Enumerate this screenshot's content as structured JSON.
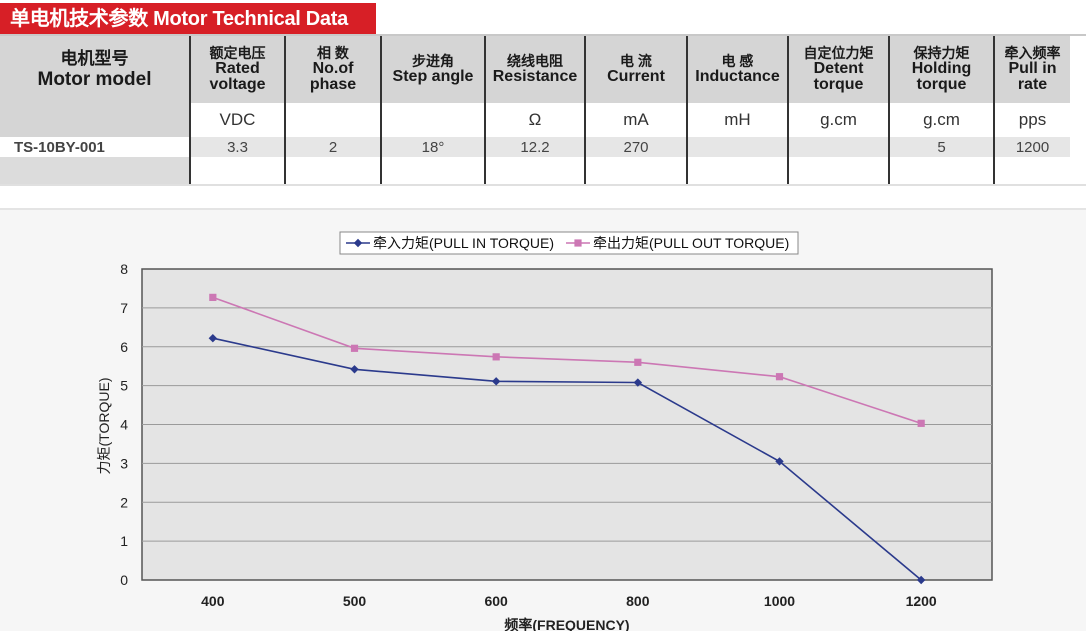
{
  "title": "单电机技术参数 Motor Technical Data",
  "table": {
    "model_header": {
      "cn": "电机型号",
      "en": "Motor model"
    },
    "columns": [
      {
        "cn": "额定电压",
        "en1": "Rated",
        "en2": "voltage",
        "unit": "VDC"
      },
      {
        "cn": "相 数",
        "en1": "No.of",
        "en2": "phase",
        "unit": ""
      },
      {
        "cn": "步进角",
        "en1": "Step angle",
        "en2": "",
        "unit": ""
      },
      {
        "cn": "绕线电阻",
        "en1": "Resistance",
        "en2": "",
        "unit": "Ω"
      },
      {
        "cn": "电 流",
        "en1": "Current",
        "en2": "",
        "unit": "mA"
      },
      {
        "cn": "电 感",
        "en1": "Inductance",
        "en2": "",
        "unit": "mH"
      },
      {
        "cn": "自定位力矩",
        "en1": "Detent",
        "en2": "torque",
        "unit": "g.cm"
      },
      {
        "cn": "保持力矩",
        "en1": "Holding",
        "en2": "torque",
        "unit": "g.cm"
      },
      {
        "cn": "牵入频率",
        "en1": "Pull in",
        "en2": "rate",
        "unit": "pps"
      }
    ],
    "rows": [
      {
        "model": "TS-10BY-001",
        "values": [
          "3.3",
          "2",
          "18°",
          "12.2",
          "270",
          "",
          "",
          "5",
          "1200"
        ]
      }
    ]
  },
  "chart_data": {
    "type": "line",
    "categories": [
      "400",
      "500",
      "600",
      "800",
      "1000",
      "1200"
    ],
    "series": [
      {
        "name": "牵入力矩(PULL IN TORQUE)",
        "color": "#2b3a8c",
        "marker": "diamond",
        "values": [
          6.22,
          5.42,
          5.11,
          5.08,
          3.05,
          0.0
        ]
      },
      {
        "name": "牵出力矩(PULL OUT TORQUE)",
        "color": "#cc77b4",
        "marker": "square",
        "values": [
          7.27,
          5.96,
          5.74,
          5.6,
          5.23,
          4.03
        ]
      }
    ],
    "xlabel": "频率(FREQUENCY)",
    "ylabel": "力矩(TORQUE)",
    "yticks": [
      "0",
      "1",
      "2",
      "3",
      "4",
      "5",
      "6",
      "7",
      "8"
    ],
    "ylim": [
      0,
      8
    ],
    "grid": true,
    "legend": "top"
  }
}
